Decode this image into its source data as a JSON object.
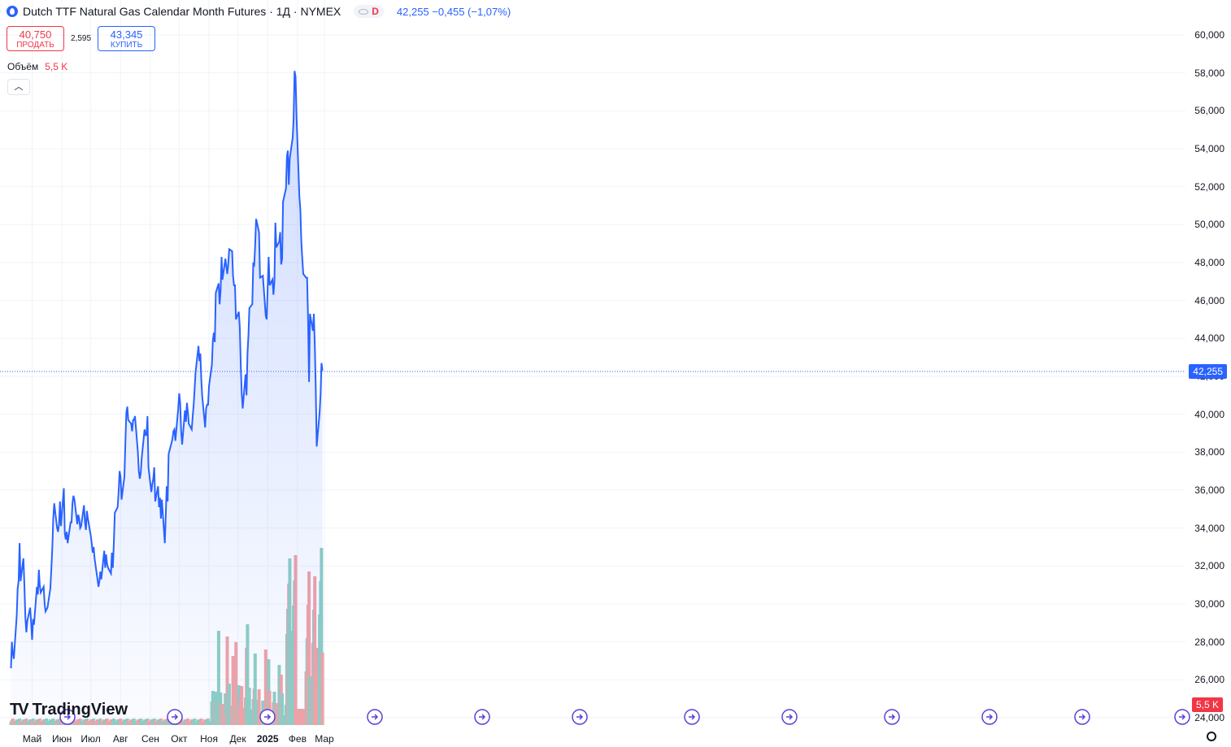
{
  "header": {
    "title": "Dutch TTF Natural Gas Calendar Month Futures · 1Д · NYMEX",
    "status_badge": "D",
    "quote": "42,255  −0,455  (−1,07%)"
  },
  "trade": {
    "sell_price": "40,750",
    "sell_label": "ПРОДАТЬ",
    "spread": "2,595",
    "buy_price": "43,345",
    "buy_label": "КУПИТЬ"
  },
  "volume_legend": {
    "label": "Объём",
    "value": "5,5 K"
  },
  "price_axis": [
    "60,000",
    "58,000",
    "56,000",
    "54,000",
    "52,000",
    "50,000",
    "48,000",
    "46,000",
    "44,000",
    "42,000",
    "40,000",
    "38,000",
    "36,000",
    "34,000",
    "32,000",
    "30,000",
    "28,000",
    "26,000",
    "24,000"
  ],
  "time_axis": [
    "Май",
    "Июн",
    "Июл",
    "Авг",
    "Сен",
    "Окт",
    "Ноя",
    "Дек",
    "2025",
    "Фев",
    "Мар"
  ],
  "last_price_tag": "42,255",
  "last_volume_tag": "5,5 K",
  "logo_text": "TradingView",
  "colors": {
    "line": "#2962ff",
    "vol_up": "#8ecfc5",
    "vol_down": "#f3a3a6",
    "accent": "#2962ff"
  },
  "chart_data": {
    "type": "area",
    "title": "Dutch TTF Natural Gas Calendar Month Futures · 1Д · NYMEX",
    "ylim": [
      24,
      60
    ],
    "x_range": [
      "2024-04-09",
      "2025-03-10"
    ],
    "series": [
      {
        "name": "price",
        "points": [
          [
            "2024-04-09",
            26.6
          ],
          [
            "2024-04-10",
            28.0
          ],
          [
            "2024-04-11",
            27.4
          ],
          [
            "2024-04-12",
            27.1
          ],
          [
            "2024-04-15",
            29.4
          ],
          [
            "2024-04-16",
            30.8
          ],
          [
            "2024-04-17",
            31.2
          ],
          [
            "2024-04-18",
            33.2
          ],
          [
            "2024-04-19",
            31.2
          ],
          [
            "2024-04-22",
            32.4
          ],
          [
            "2024-04-23",
            31.0
          ],
          [
            "2024-04-24",
            29.3
          ],
          [
            "2024-04-25",
            28.5
          ],
          [
            "2024-04-26",
            29.1
          ],
          [
            "2024-04-29",
            29.8
          ],
          [
            "2024-04-30",
            29.0
          ],
          [
            "2024-05-01",
            28.1
          ],
          [
            "2024-05-02",
            29.2
          ],
          [
            "2024-05-03",
            28.9
          ],
          [
            "2024-05-06",
            30.9
          ],
          [
            "2024-05-07",
            30.5
          ],
          [
            "2024-05-08",
            31.8
          ],
          [
            "2024-05-09",
            31.0
          ],
          [
            "2024-05-10",
            30.6
          ],
          [
            "2024-05-13",
            30.9
          ],
          [
            "2024-05-14",
            30.0
          ],
          [
            "2024-05-15",
            29.6
          ],
          [
            "2024-05-16",
            29.7
          ],
          [
            "2024-05-17",
            29.8
          ],
          [
            "2024-05-20",
            30.8
          ],
          [
            "2024-05-21",
            31.8
          ],
          [
            "2024-05-22",
            32.9
          ],
          [
            "2024-05-23",
            34.5
          ],
          [
            "2024-05-24",
            35.3
          ],
          [
            "2024-05-27",
            34.0
          ],
          [
            "2024-05-28",
            33.8
          ],
          [
            "2024-05-29",
            34.2
          ],
          [
            "2024-05-30",
            35.4
          ],
          [
            "2024-05-31",
            34.1
          ],
          [
            "2024-06-03",
            36.1
          ],
          [
            "2024-06-04",
            33.7
          ],
          [
            "2024-06-05",
            33.4
          ],
          [
            "2024-06-06",
            33.8
          ],
          [
            "2024-06-07",
            33.2
          ],
          [
            "2024-06-10",
            34.3
          ],
          [
            "2024-06-11",
            34.3
          ],
          [
            "2024-06-12",
            35.3
          ],
          [
            "2024-06-13",
            35.7
          ],
          [
            "2024-06-14",
            35.5
          ],
          [
            "2024-06-17",
            34.2
          ],
          [
            "2024-06-18",
            34.7
          ],
          [
            "2024-06-19",
            34.5
          ],
          [
            "2024-06-20",
            34.0
          ],
          [
            "2024-06-21",
            34.1
          ],
          [
            "2024-06-24",
            35.2
          ],
          [
            "2024-06-25",
            34.3
          ],
          [
            "2024-06-26",
            33.9
          ],
          [
            "2024-06-27",
            34.9
          ],
          [
            "2024-06-28",
            34.5
          ],
          [
            "2024-07-01",
            33.6
          ],
          [
            "2024-07-02",
            33.2
          ],
          [
            "2024-07-03",
            32.7
          ],
          [
            "2024-07-04",
            33.0
          ],
          [
            "2024-07-05",
            32.4
          ],
          [
            "2024-07-08",
            31.3
          ],
          [
            "2024-07-09",
            30.9
          ],
          [
            "2024-07-10",
            31.2
          ],
          [
            "2024-07-11",
            31.7
          ],
          [
            "2024-07-12",
            31.3
          ],
          [
            "2024-07-15",
            32.8
          ],
          [
            "2024-07-16",
            31.9
          ],
          [
            "2024-07-17",
            32.6
          ],
          [
            "2024-07-18",
            32.1
          ],
          [
            "2024-07-19",
            31.9
          ],
          [
            "2024-07-22",
            31.6
          ],
          [
            "2024-07-23",
            32.7
          ],
          [
            "2024-07-24",
            31.9
          ],
          [
            "2024-07-25",
            33.2
          ],
          [
            "2024-07-26",
            34.8
          ],
          [
            "2024-07-29",
            35.1
          ],
          [
            "2024-07-30",
            35.9
          ],
          [
            "2024-07-31",
            37.0
          ],
          [
            "2024-08-01",
            36.7
          ],
          [
            "2024-08-02",
            35.5
          ],
          [
            "2024-08-05",
            36.7
          ],
          [
            "2024-08-06",
            38.5
          ],
          [
            "2024-08-07",
            40.1
          ],
          [
            "2024-08-08",
            40.4
          ],
          [
            "2024-08-09",
            39.7
          ],
          [
            "2024-08-12",
            39.5
          ],
          [
            "2024-08-13",
            39.1
          ],
          [
            "2024-08-14",
            39.7
          ],
          [
            "2024-08-15",
            39.7
          ],
          [
            "2024-08-16",
            39.9
          ],
          [
            "2024-08-19",
            38.0
          ],
          [
            "2024-08-20",
            37.0
          ],
          [
            "2024-08-21",
            36.6
          ],
          [
            "2024-08-22",
            36.9
          ],
          [
            "2024-08-23",
            37.7
          ],
          [
            "2024-08-26",
            39.2
          ],
          [
            "2024-08-27",
            38.9
          ],
          [
            "2024-08-28",
            38.9
          ],
          [
            "2024-08-29",
            39.9
          ],
          [
            "2024-08-30",
            37.2
          ],
          [
            "2024-09-02",
            35.9
          ],
          [
            "2024-09-03",
            36.3
          ],
          [
            "2024-09-04",
            36.6
          ],
          [
            "2024-09-05",
            37.2
          ],
          [
            "2024-09-06",
            35.4
          ],
          [
            "2024-09-09",
            36.2
          ],
          [
            "2024-09-10",
            35.1
          ],
          [
            "2024-09-11",
            35.6
          ],
          [
            "2024-09-12",
            34.5
          ],
          [
            "2024-09-13",
            35.5
          ],
          [
            "2024-09-16",
            33.2
          ],
          [
            "2024-09-17",
            34.7
          ],
          [
            "2024-09-18",
            36.2
          ],
          [
            "2024-09-19",
            35.4
          ],
          [
            "2024-09-20",
            37.9
          ],
          [
            "2024-09-23",
            38.5
          ],
          [
            "2024-09-24",
            38.7
          ],
          [
            "2024-09-25",
            39.1
          ],
          [
            "2024-09-26",
            39.2
          ],
          [
            "2024-09-27",
            38.6
          ],
          [
            "2024-09-30",
            40.3
          ],
          [
            "2024-10-01",
            41.1
          ],
          [
            "2024-10-02",
            40.6
          ],
          [
            "2024-10-03",
            39.1
          ],
          [
            "2024-10-04",
            38.4
          ],
          [
            "2024-10-07",
            40.2
          ],
          [
            "2024-10-08",
            39.6
          ],
          [
            "2024-10-09",
            40.6
          ],
          [
            "2024-10-10",
            40.1
          ],
          [
            "2024-10-11",
            39.5
          ],
          [
            "2024-10-14",
            39.2
          ],
          [
            "2024-10-15",
            39.9
          ],
          [
            "2024-10-16",
            40.5
          ],
          [
            "2024-10-17",
            41.3
          ],
          [
            "2024-10-18",
            42.2
          ],
          [
            "2024-10-21",
            43.6
          ],
          [
            "2024-10-22",
            42.8
          ],
          [
            "2024-10-23",
            43.2
          ],
          [
            "2024-10-24",
            41.8
          ],
          [
            "2024-10-25",
            40.9
          ],
          [
            "2024-10-28",
            39.3
          ],
          [
            "2024-10-29",
            40.3
          ],
          [
            "2024-10-30",
            40.5
          ],
          [
            "2024-10-31",
            40.5
          ],
          [
            "2024-11-01",
            41.5
          ],
          [
            "2024-11-04",
            42.6
          ],
          [
            "2024-11-05",
            43.9
          ],
          [
            "2024-11-06",
            44.3
          ],
          [
            "2024-11-07",
            43.8
          ],
          [
            "2024-11-08",
            46.4
          ],
          [
            "2024-11-11",
            46.9
          ],
          [
            "2024-11-12",
            45.8
          ],
          [
            "2024-11-13",
            46.5
          ],
          [
            "2024-11-14",
            48.3
          ],
          [
            "2024-11-15",
            47.1
          ],
          [
            "2024-11-18",
            48.2
          ],
          [
            "2024-11-19",
            47.8
          ],
          [
            "2024-11-20",
            47.4
          ],
          [
            "2024-11-21",
            47.9
          ],
          [
            "2024-11-22",
            48.7
          ],
          [
            "2024-11-25",
            48.6
          ],
          [
            "2024-11-26",
            47.3
          ],
          [
            "2024-11-27",
            46.8
          ],
          [
            "2024-11-28",
            46.8
          ],
          [
            "2024-11-29",
            45.0
          ],
          [
            "2024-12-02",
            45.4
          ],
          [
            "2024-12-03",
            44.6
          ],
          [
            "2024-12-04",
            42.6
          ],
          [
            "2024-12-05",
            41.1
          ],
          [
            "2024-12-06",
            40.3
          ],
          [
            "2024-12-09",
            42.1
          ],
          [
            "2024-12-10",
            41.0
          ],
          [
            "2024-12-11",
            43.2
          ],
          [
            "2024-12-12",
            44.2
          ],
          [
            "2024-12-13",
            45.6
          ],
          [
            "2024-12-16",
            45.8
          ],
          [
            "2024-12-17",
            48.0
          ],
          [
            "2024-12-18",
            47.9
          ],
          [
            "2024-12-19",
            48.9
          ],
          [
            "2024-12-20",
            50.3
          ],
          [
            "2024-12-23",
            49.6
          ],
          [
            "2024-12-24",
            47.2
          ],
          [
            "2024-12-27",
            47.3
          ],
          [
            "2024-12-30",
            45.2
          ],
          [
            "2024-12-31",
            45.0
          ],
          [
            "2025-01-02",
            48.3
          ],
          [
            "2025-01-03",
            46.8
          ],
          [
            "2025-01-06",
            47.1
          ],
          [
            "2025-01-07",
            46.3
          ],
          [
            "2025-01-08",
            47.0
          ],
          [
            "2025-01-09",
            50.1
          ],
          [
            "2025-01-10",
            48.8
          ],
          [
            "2025-01-13",
            49.1
          ],
          [
            "2025-01-14",
            49.6
          ],
          [
            "2025-01-15",
            47.9
          ],
          [
            "2025-01-16",
            48.2
          ],
          [
            "2025-01-17",
            51.2
          ],
          [
            "2025-01-20",
            51.9
          ],
          [
            "2025-01-21",
            53.6
          ],
          [
            "2025-01-22",
            53.9
          ],
          [
            "2025-01-23",
            52.1
          ],
          [
            "2025-01-24",
            53.5
          ],
          [
            "2025-01-27",
            54.6
          ],
          [
            "2025-01-28",
            55.6
          ],
          [
            "2025-01-29",
            58.1
          ],
          [
            "2025-01-30",
            57.8
          ],
          [
            "2025-01-31",
            55.7
          ],
          [
            "2025-02-03",
            51.5
          ],
          [
            "2025-02-04",
            50.8
          ],
          [
            "2025-02-05",
            49.1
          ],
          [
            "2025-02-06",
            48.2
          ],
          [
            "2025-02-07",
            47.4
          ],
          [
            "2025-02-10",
            47.2
          ],
          [
            "2025-02-11",
            47.2
          ],
          [
            "2025-02-12",
            45.0
          ],
          [
            "2025-02-13",
            41.7
          ],
          [
            "2025-02-14",
            45.3
          ],
          [
            "2025-02-17",
            44.4
          ],
          [
            "2025-02-18",
            45.3
          ],
          [
            "2025-02-19",
            43.6
          ],
          [
            "2025-02-20",
            41.5
          ],
          [
            "2025-02-21",
            38.3
          ],
          [
            "2025-02-24",
            40.1
          ],
          [
            "2025-02-25",
            41.1
          ],
          [
            "2025-02-26",
            42.7
          ],
          [
            "2025-02-27",
            42.3
          ]
        ]
      }
    ],
    "volume": {
      "name": "Объём",
      "last": "5,5 K"
    }
  }
}
